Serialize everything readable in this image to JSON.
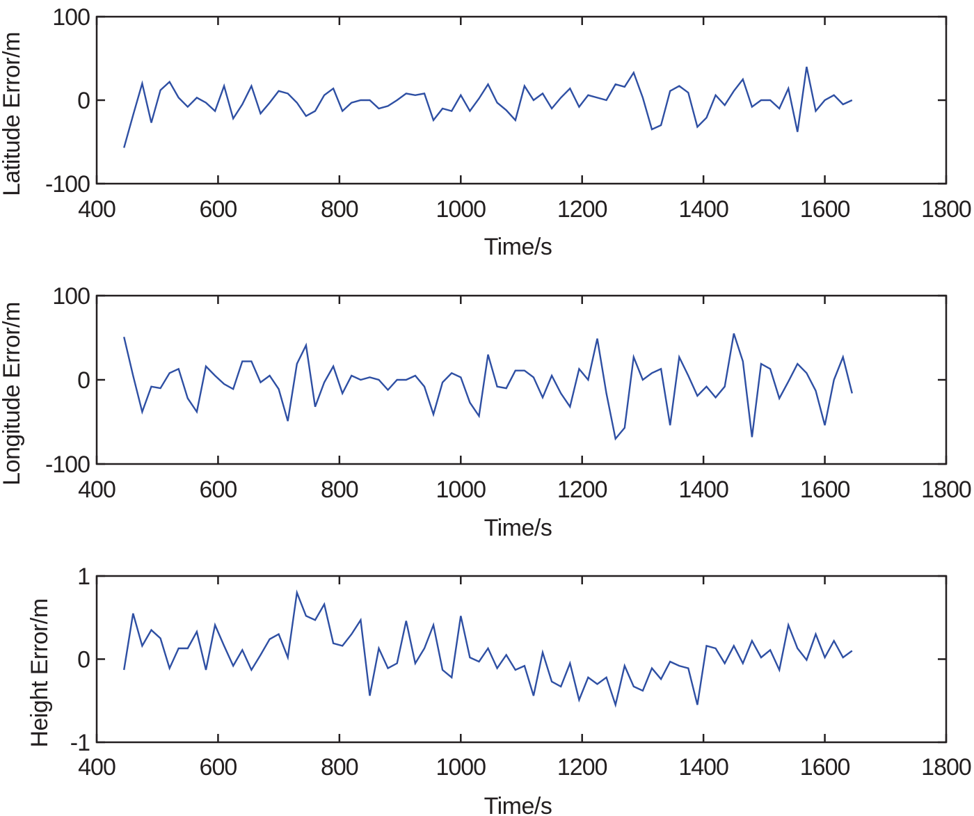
{
  "figure": {
    "line_color": "#2e4fa3",
    "axis_color": "#231f20",
    "x_tick_labels": [
      "400",
      "600",
      "800",
      "1000",
      "1200",
      "1400",
      "1600",
      "1800"
    ]
  },
  "chart_data": [
    {
      "type": "line",
      "title": "",
      "xlabel": "Time/s",
      "ylabel": "Latitude Error/m",
      "xlim": [
        400,
        1800
      ],
      "ylim": [
        -100,
        100
      ],
      "x_ticks": [
        400,
        600,
        800,
        1000,
        1200,
        1400,
        1600,
        1800
      ],
      "y_ticks": [
        -100,
        0,
        100
      ],
      "y_tick_labels": [
        "-100",
        "0",
        "100"
      ],
      "grid": false,
      "legend": null,
      "series": [
        {
          "name": "Latitude Error",
          "x": [
            445,
            460,
            475,
            490,
            505,
            520,
            535,
            550,
            565,
            580,
            595,
            610,
            625,
            640,
            655,
            670,
            685,
            700,
            715,
            730,
            745,
            760,
            775,
            790,
            805,
            820,
            835,
            850,
            865,
            880,
            895,
            910,
            925,
            940,
            955,
            970,
            985,
            1000,
            1015,
            1030,
            1045,
            1060,
            1075,
            1090,
            1105,
            1120,
            1135,
            1150,
            1165,
            1180,
            1195,
            1210,
            1225,
            1240,
            1255,
            1270,
            1285,
            1300,
            1315,
            1330,
            1345,
            1360,
            1375,
            1390,
            1405,
            1420,
            1435,
            1450,
            1465,
            1480,
            1495,
            1510,
            1525,
            1540,
            1555,
            1570,
            1585,
            1600,
            1615,
            1630,
            1645
          ],
          "values": [
            -57,
            -18,
            20,
            -27,
            12,
            22,
            3,
            -8,
            3,
            -3,
            -13,
            17,
            -22,
            -5,
            17,
            -16,
            -3,
            11,
            8,
            -3,
            -19,
            -13,
            6,
            14,
            -13,
            -3,
            0,
            0,
            -10,
            -7,
            0,
            8,
            6,
            8,
            -24,
            -10,
            -13,
            6,
            -13,
            2,
            19,
            -3,
            -12,
            -24,
            17,
            0,
            8,
            -10,
            3,
            14,
            -8,
            6,
            3,
            0,
            19,
            16,
            33,
            3,
            -35,
            -30,
            11,
            17,
            9,
            -32,
            -21,
            6,
            -6,
            11,
            25,
            -8,
            0,
            0,
            -10,
            14,
            -38,
            40,
            -13,
            0,
            6,
            -5,
            0
          ]
        }
      ]
    },
    {
      "type": "line",
      "title": "",
      "xlabel": "Time/s",
      "ylabel": "Longitude Error/m",
      "xlim": [
        400,
        1800
      ],
      "ylim": [
        -100,
        100
      ],
      "x_ticks": [
        400,
        600,
        800,
        1000,
        1200,
        1400,
        1600,
        1800
      ],
      "y_ticks": [
        -100,
        0,
        100
      ],
      "y_tick_labels": [
        "-100",
        "0",
        "100"
      ],
      "grid": false,
      "legend": null,
      "series": [
        {
          "name": "Longitude Error",
          "x": [
            445,
            460,
            475,
            490,
            505,
            520,
            535,
            550,
            565,
            580,
            595,
            610,
            625,
            640,
            655,
            670,
            685,
            700,
            715,
            730,
            745,
            760,
            775,
            790,
            805,
            820,
            835,
            850,
            865,
            880,
            895,
            910,
            925,
            940,
            955,
            970,
            985,
            1000,
            1015,
            1030,
            1045,
            1060,
            1075,
            1090,
            1105,
            1120,
            1135,
            1150,
            1165,
            1180,
            1195,
            1210,
            1225,
            1240,
            1255,
            1270,
            1285,
            1300,
            1315,
            1330,
            1345,
            1360,
            1375,
            1390,
            1405,
            1420,
            1435,
            1450,
            1465,
            1480,
            1495,
            1510,
            1525,
            1540,
            1555,
            1570,
            1585,
            1600,
            1615,
            1630,
            1645
          ],
          "values": [
            51,
            5,
            -38,
            -8,
            -10,
            8,
            13,
            -22,
            -38,
            16,
            5,
            -5,
            -11,
            22,
            22,
            -3,
            5,
            -11,
            -49,
            19,
            41,
            -32,
            -3,
            16,
            -16,
            5,
            0,
            3,
            0,
            -12,
            0,
            0,
            5,
            -8,
            -41,
            -3,
            8,
            3,
            -27,
            -43,
            30,
            -8,
            -10,
            11,
            11,
            3,
            -21,
            5,
            -16,
            -32,
            13,
            0,
            49,
            -16,
            -70,
            -57,
            27,
            0,
            8,
            13,
            -54,
            27,
            5,
            -19,
            -8,
            -21,
            -8,
            55,
            22,
            -68,
            19,
            13,
            -22,
            -2,
            19,
            8,
            -13,
            -54,
            0,
            27,
            -16
          ]
        }
      ]
    },
    {
      "type": "line",
      "title": "",
      "xlabel": "Time/s",
      "ylabel": "Height Error/m",
      "xlim": [
        400,
        1800
      ],
      "ylim": [
        -1,
        1
      ],
      "x_ticks": [
        400,
        600,
        800,
        1000,
        1200,
        1400,
        1600,
        1800
      ],
      "y_ticks": [
        -1,
        0,
        1
      ],
      "y_tick_labels": [
        "-1",
        "0",
        "1"
      ],
      "grid": false,
      "legend": null,
      "series": [
        {
          "name": "Height Error",
          "x": [
            445,
            460,
            475,
            490,
            505,
            520,
            535,
            550,
            565,
            580,
            595,
            610,
            625,
            640,
            655,
            670,
            685,
            700,
            715,
            730,
            745,
            760,
            775,
            790,
            805,
            820,
            835,
            850,
            865,
            880,
            895,
            910,
            925,
            940,
            955,
            970,
            985,
            1000,
            1015,
            1030,
            1045,
            1060,
            1075,
            1090,
            1105,
            1120,
            1135,
            1150,
            1165,
            1180,
            1195,
            1210,
            1225,
            1240,
            1255,
            1270,
            1285,
            1300,
            1315,
            1330,
            1345,
            1360,
            1375,
            1390,
            1405,
            1420,
            1435,
            1450,
            1465,
            1480,
            1495,
            1510,
            1525,
            1540,
            1555,
            1570,
            1585,
            1600,
            1615,
            1630,
            1645
          ],
          "values": [
            -0.13,
            0.55,
            0.16,
            0.35,
            0.25,
            -0.11,
            0.13,
            0.13,
            0.33,
            -0.13,
            0.41,
            0.16,
            -0.08,
            0.11,
            -0.13,
            0.05,
            0.24,
            0.3,
            0.02,
            0.8,
            0.52,
            0.47,
            0.66,
            0.19,
            0.16,
            0.3,
            0.47,
            -0.44,
            0.13,
            -0.11,
            -0.05,
            0.46,
            -0.05,
            0.13,
            0.41,
            -0.13,
            -0.22,
            0.52,
            0.02,
            -0.03,
            0.13,
            -0.11,
            0.05,
            -0.13,
            -0.08,
            -0.44,
            0.08,
            -0.27,
            -0.33,
            -0.05,
            -0.49,
            -0.22,
            -0.3,
            -0.22,
            -0.55,
            -0.08,
            -0.33,
            -0.38,
            -0.11,
            -0.24,
            -0.03,
            -0.08,
            -0.11,
            -0.55,
            0.16,
            0.13,
            -0.05,
            0.16,
            -0.05,
            0.22,
            0.02,
            0.11,
            -0.13,
            0.41,
            0.13,
            -0.01,
            0.3,
            0.02,
            0.22,
            0.02,
            0.1
          ]
        }
      ]
    }
  ]
}
